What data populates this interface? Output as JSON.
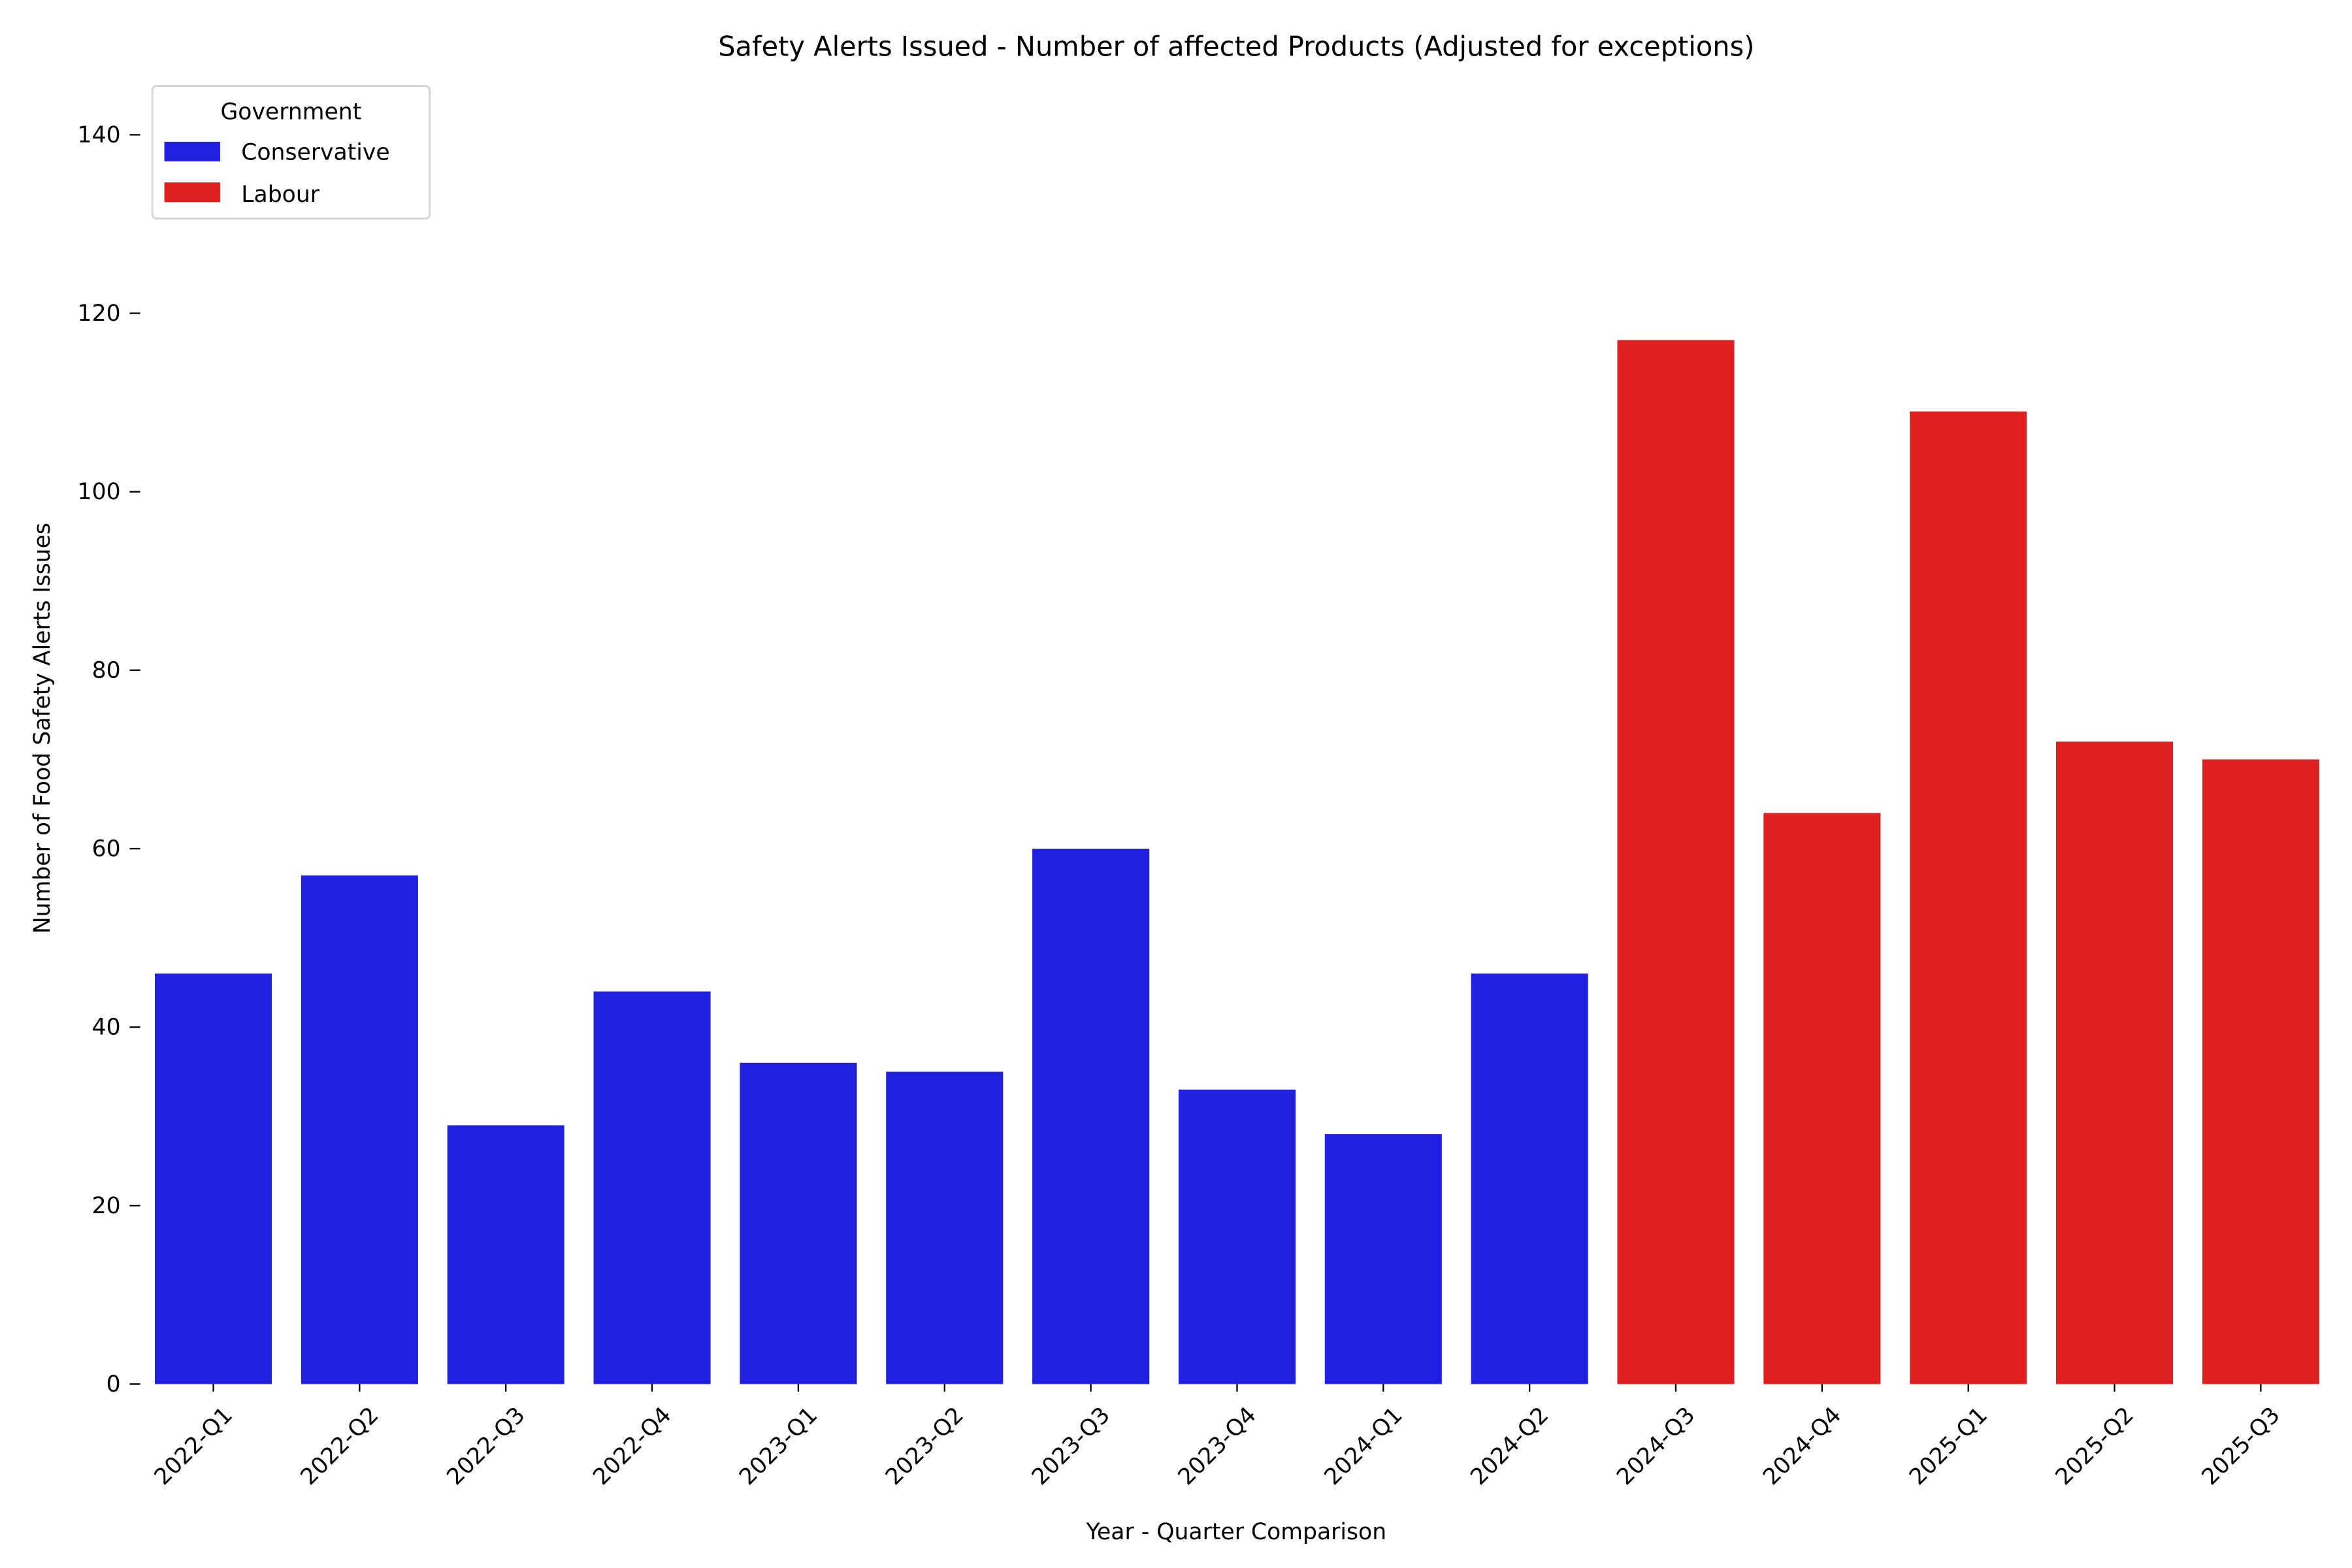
{
  "chart_data": {
    "type": "bar",
    "title": "Safety Alerts Issued - Number of affected Products (Adjusted for exceptions)",
    "xlabel": "Year - Quarter Comparison",
    "ylabel": "Number of Food Safety Alerts Issues",
    "ylim": [
      0,
      147
    ],
    "yticks": [
      0,
      20,
      40,
      60,
      80,
      100,
      120,
      140
    ],
    "grid": false,
    "categories": [
      "2022-Q1",
      "2022-Q2",
      "2022-Q3",
      "2022-Q4",
      "2023-Q1",
      "2023-Q2",
      "2023-Q3",
      "2023-Q4",
      "2024-Q1",
      "2024-Q2",
      "2024-Q3",
      "2024-Q4",
      "2025-Q1",
      "2025-Q2",
      "2025-Q3"
    ],
    "values": [
      46,
      57,
      29,
      44,
      36,
      35,
      60,
      33,
      28,
      46,
      117,
      64,
      109,
      72,
      70
    ],
    "groups": [
      "Conservative",
      "Conservative",
      "Conservative",
      "Conservative",
      "Conservative",
      "Conservative",
      "Conservative",
      "Conservative",
      "Conservative",
      "Conservative",
      "Labour",
      "Labour",
      "Labour",
      "Labour",
      "Labour"
    ],
    "legend": {
      "title": "Government",
      "placement": "top-left",
      "entries": [
        {
          "name": "Conservative",
          "color": "#2020e0"
        },
        {
          "name": "Labour",
          "color": "#de2020"
        }
      ]
    }
  }
}
